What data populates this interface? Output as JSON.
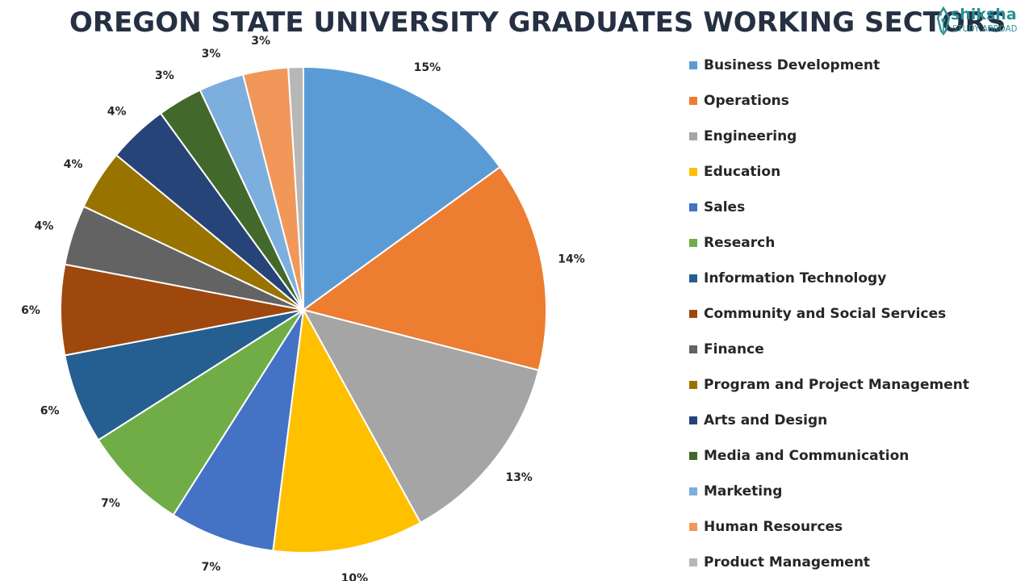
{
  "chart_data": {
    "type": "pie",
    "title": "OREGON STATE UNIVERSITY GRADUATES WORKING SECTORS",
    "legend_position": "right",
    "slices": [
      {
        "label": "Business Development",
        "value": 15,
        "display": "15%",
        "color": "#5B9BD5"
      },
      {
        "label": "Operations",
        "value": 14,
        "display": "14%",
        "color": "#ED7D31"
      },
      {
        "label": "Engineering",
        "value": 13,
        "display": "13%",
        "color": "#A5A5A5"
      },
      {
        "label": "Education",
        "value": 10,
        "display": "10%",
        "color": "#FFC000"
      },
      {
        "label": "Sales",
        "value": 7,
        "display": "7%",
        "color": "#4472C4"
      },
      {
        "label": "Research",
        "value": 7,
        "display": "7%",
        "color": "#70AD47"
      },
      {
        "label": "Information Technology",
        "value": 6,
        "display": "6%",
        "color": "#255E91"
      },
      {
        "label": "Community and Social Services",
        "value": 6,
        "display": "6%",
        "color": "#9E480E"
      },
      {
        "label": "Finance",
        "value": 4,
        "display": "4%",
        "color": "#636363"
      },
      {
        "label": "Program and Project Management",
        "value": 4,
        "display": "4%",
        "color": "#997300"
      },
      {
        "label": "Arts and Design",
        "value": 4,
        "display": "4%",
        "color": "#264478"
      },
      {
        "label": "Media and Communication",
        "value": 3,
        "display": "3%",
        "color": "#43682B"
      },
      {
        "label": "Marketing",
        "value": 3,
        "display": "3%",
        "color": "#7CAFDD"
      },
      {
        "label": "Human Resources",
        "value": 3,
        "display": "3%",
        "color": "#F1975A"
      },
      {
        "label": "Product Management",
        "value": 1,
        "display": "",
        "color": "#B7B7B7"
      }
    ]
  },
  "logo": {
    "word": "shiksha",
    "subtitle": "STUDY ABROAD",
    "color": "#2a8f94",
    "icon": "pen-nib-icon"
  }
}
